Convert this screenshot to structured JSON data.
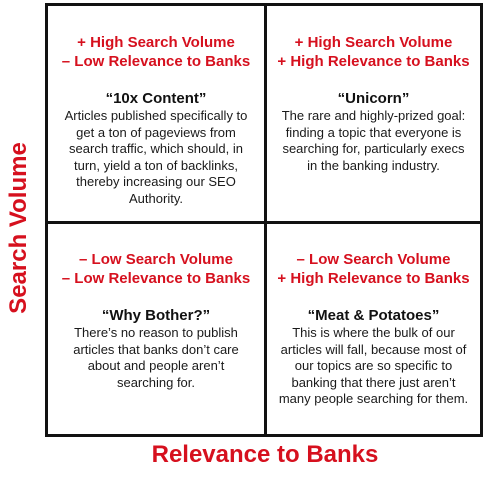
{
  "axes": {
    "y_label": "Search Volume",
    "x_label": "Relevance to Banks"
  },
  "quadrants": {
    "top_left": {
      "line1": "+ High Search Volume",
      "line2": "– Low Relevance to Banks",
      "title": "“10x Content”",
      "description": "Articles published specifically to get a ton of pageviews from search traffic, which should, in turn, yield a ton of backlinks, thereby increasing our SEO Authority."
    },
    "top_right": {
      "line1": "+ High Search Volume",
      "line2": "+ High Relevance to Banks",
      "title": "“Unicorn”",
      "description": "The rare and highly-prized goal: finding a topic that everyone is searching for, particularly execs in the banking industry."
    },
    "bottom_left": {
      "line1": "– Low Search Volume",
      "line2": "– Low Relevance to Banks",
      "title": "“Why Bother?”",
      "description": "There’s no reason to publish articles that banks don’t care about and people aren’t searching for."
    },
    "bottom_right": {
      "line1": "– Low Search Volume",
      "line2": "+ High Relevance to Banks",
      "title": "“Meat & Potatoes”",
      "description": "This is where the bulk of our articles will fall, because most of our topics are so specific to banking that there just aren’t many people searching for them."
    }
  },
  "colors": {
    "accent": "#d6101e",
    "border": "#111111",
    "text": "#1a1a1a"
  }
}
